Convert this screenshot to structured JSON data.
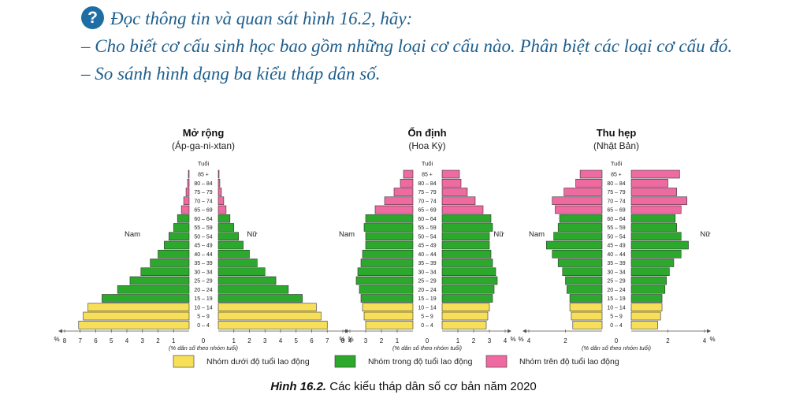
{
  "question": {
    "icon": "question-icon",
    "icon_glyph": "?",
    "lines": [
      "Đọc thông tin và quan sát hình 16.2, hãy:",
      "– Cho biết cơ cấu sinh học bao gồm những loại cơ cấu nào. Phân biệt các loại cơ cấu đó.",
      "– So sánh hình dạng ba kiểu tháp dân số."
    ]
  },
  "caption": {
    "label": "Hình 16.2.",
    "text": " Các kiểu tháp dân số cơ bản năm 2020"
  },
  "colors": {
    "young": "#f7df5a",
    "working": "#2ca82c",
    "old": "#ef6aa0",
    "outline": "#333333"
  },
  "chart_data": [
    {
      "type": "bar",
      "title": "Mở rộng",
      "subtitle": "(Áp-ga-ni-xtan)",
      "age_header": "Tuổi",
      "left_label": "Nam",
      "right_label": "Nữ",
      "xlabel": "(% dân số theo nhóm tuổi)",
      "xlim": [
        0,
        8
      ],
      "ticks": [
        "8",
        "7",
        "6",
        "5",
        "4",
        "3",
        "2",
        "1",
        "0",
        "1",
        "2",
        "3",
        "4",
        "5",
        "6",
        "7",
        "8"
      ],
      "percent_sign": "%",
      "categories": [
        "85 +",
        "80 – 84",
        "75 – 79",
        "70 – 74",
        "65 – 69",
        "60 – 64",
        "55 – 59",
        "50 – 54",
        "45 – 49",
        "40 – 44",
        "35 – 39",
        "30 – 34",
        "25 – 29",
        "20 – 24",
        "15 – 19",
        "10 – 14",
        "5 – 9",
        "0 – 4"
      ],
      "groups": [
        "old",
        "old",
        "old",
        "old",
        "old",
        "working",
        "working",
        "working",
        "working",
        "working",
        "working",
        "working",
        "working",
        "working",
        "working",
        "young",
        "young",
        "young"
      ],
      "series": [
        {
          "name": "Nam",
          "values": [
            0.05,
            0.1,
            0.2,
            0.35,
            0.5,
            0.75,
            1.0,
            1.3,
            1.6,
            2.0,
            2.5,
            3.1,
            3.8,
            4.6,
            5.6,
            6.5,
            6.8,
            7.1
          ]
        },
        {
          "name": "Nữ",
          "values": [
            0.05,
            0.1,
            0.2,
            0.35,
            0.5,
            0.75,
            1.0,
            1.3,
            1.6,
            2.0,
            2.5,
            3.0,
            3.7,
            4.5,
            5.4,
            6.3,
            6.6,
            7.0
          ]
        }
      ]
    },
    {
      "type": "bar",
      "title": "Ổn định",
      "subtitle": "(Hoa Kỳ)",
      "age_header": "Tuổi",
      "left_label": "Nam",
      "right_label": "Nữ",
      "xlabel": "(% dân số theo nhóm tuổi)",
      "xlim": [
        0,
        4
      ],
      "ticks": [
        "4",
        "3",
        "2",
        "1",
        "0",
        "1",
        "2",
        "3",
        "4"
      ],
      "percent_sign": "%",
      "categories": [
        "85 +",
        "80 – 84",
        "75 – 79",
        "70 – 74",
        "65 – 69",
        "60 – 64",
        "55 – 59",
        "50 – 54",
        "45 – 49",
        "40 – 44",
        "35 – 39",
        "30 – 34",
        "25 – 29",
        "20 – 24",
        "15 – 19",
        "10 – 14",
        "5 – 9",
        "0 – 4"
      ],
      "groups": [
        "old",
        "old",
        "old",
        "old",
        "old",
        "working",
        "working",
        "working",
        "working",
        "working",
        "working",
        "working",
        "working",
        "working",
        "working",
        "young",
        "young",
        "young"
      ],
      "series": [
        {
          "name": "Nam",
          "values": [
            0.6,
            0.8,
            1.2,
            1.8,
            2.4,
            3.0,
            3.1,
            3.0,
            3.0,
            3.2,
            3.3,
            3.5,
            3.6,
            3.4,
            3.3,
            3.2,
            3.1,
            3.0
          ]
        },
        {
          "name": "Nữ",
          "values": [
            1.1,
            1.2,
            1.6,
            2.1,
            2.6,
            3.1,
            3.2,
            3.0,
            3.0,
            3.1,
            3.2,
            3.4,
            3.5,
            3.3,
            3.2,
            3.0,
            2.9,
            2.8
          ]
        }
      ]
    },
    {
      "type": "bar",
      "title": "Thu hẹp",
      "subtitle": "(Nhật Bản)",
      "age_header": "Tuổi",
      "left_label": "Nam",
      "right_label": "Nữ",
      "xlabel": "(% dân số theo nhóm tuổi)",
      "xlim": [
        0,
        5
      ],
      "ticks": [
        "4",
        "2",
        "0",
        "2",
        "4"
      ],
      "percent_sign": "%",
      "categories": [
        "85 +",
        "80 – 84",
        "75 – 79",
        "70 – 74",
        "65 – 69",
        "60 – 64",
        "55 – 59",
        "50 – 54",
        "45 – 49",
        "40 – 44",
        "35 – 39",
        "30 – 34",
        "25 – 29",
        "20 – 24",
        "15 – 19",
        "10 – 14",
        "5 – 9",
        "0 – 4"
      ],
      "groups": [
        "old",
        "old",
        "old",
        "old",
        "old",
        "working",
        "working",
        "working",
        "working",
        "working",
        "working",
        "working",
        "working",
        "working",
        "working",
        "young",
        "young",
        "young"
      ],
      "series": [
        {
          "name": "Nam",
          "values": [
            1.5,
            1.8,
            2.6,
            3.4,
            3.2,
            2.9,
            3.0,
            3.3,
            3.8,
            3.4,
            3.0,
            2.7,
            2.5,
            2.4,
            2.2,
            2.2,
            2.1,
            2.0
          ]
        },
        {
          "name": "Nữ",
          "values": [
            3.3,
            2.5,
            3.1,
            3.8,
            3.4,
            3.0,
            3.1,
            3.4,
            3.9,
            3.4,
            2.9,
            2.6,
            2.4,
            2.3,
            2.1,
            2.1,
            2.0,
            1.8
          ]
        }
      ]
    }
  ],
  "legend": [
    {
      "label": "Nhóm dưới độ tuổi lao động",
      "color": "#f7df5a"
    },
    {
      "label": "Nhóm trong độ tuổi lao động",
      "color": "#2ca82c"
    },
    {
      "label": "Nhóm trên độ tuổi lao động",
      "color": "#ef6aa0"
    }
  ]
}
